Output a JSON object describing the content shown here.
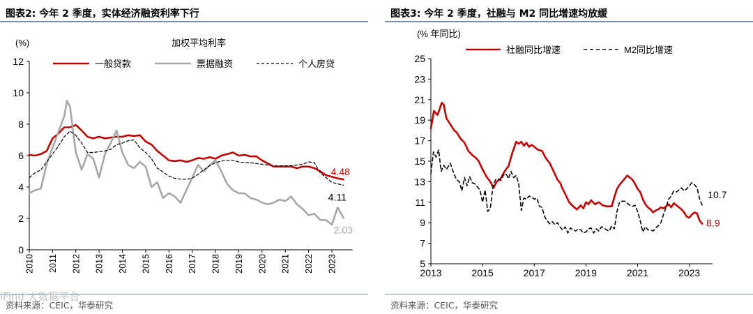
{
  "watermark": "iFind 大数据平台",
  "left_figure": {
    "title": "图表2:  今年 2 季度，实体经济融资利率下行",
    "source": "资料来源：CEIC，华泰研究"
  },
  "right_figure": {
    "title": "图表3:  今年 2 季度，社融与 M2 同比增速均放缓",
    "source": "资料来源：CEIC，华泰研究"
  },
  "colors": {
    "red": "#c00000",
    "gray": "#a6a6a6",
    "black": "#000000",
    "rule": "#6f90b8"
  },
  "chart_data": [
    {
      "id": "left",
      "type": "line",
      "unit_label": "(%)",
      "subtitle": "加权平均利率",
      "ylim": [
        0,
        12
      ],
      "yticks": [
        0,
        2,
        4,
        6,
        8,
        10,
        12
      ],
      "xlim": [
        2010,
        2023.9
      ],
      "xticks": [
        2010,
        2011,
        2012,
        2013,
        2014,
        2015,
        2016,
        2017,
        2018,
        2019,
        2020,
        2021,
        2022,
        2023
      ],
      "x_tick_rotation": -90,
      "legend_position": "top",
      "series": [
        {
          "name": "一般贷款",
          "style": "solid",
          "width": 2.6,
          "color": "#c00000",
          "x": [
            2010.0,
            2010.25,
            2010.5,
            2010.75,
            2011.0,
            2011.25,
            2011.5,
            2011.75,
            2012.0,
            2012.25,
            2012.5,
            2012.75,
            2013.0,
            2013.25,
            2013.5,
            2013.75,
            2014.0,
            2014.25,
            2014.5,
            2014.75,
            2015.0,
            2015.25,
            2015.5,
            2015.75,
            2016.0,
            2016.25,
            2016.5,
            2016.75,
            2017.0,
            2017.25,
            2017.5,
            2017.75,
            2018.0,
            2018.25,
            2018.5,
            2018.75,
            2019.0,
            2019.25,
            2019.5,
            2019.75,
            2020.0,
            2020.25,
            2020.5,
            2020.75,
            2021.0,
            2021.25,
            2021.5,
            2021.75,
            2022.0,
            2022.25,
            2022.5,
            2022.75,
            2023.0,
            2023.25,
            2023.5
          ],
          "y": [
            6.05,
            6.0,
            6.1,
            6.3,
            7.1,
            7.4,
            7.8,
            7.8,
            7.95,
            7.6,
            7.2,
            7.1,
            7.2,
            7.1,
            7.15,
            7.2,
            7.2,
            7.3,
            7.25,
            7.3,
            6.9,
            6.7,
            6.3,
            6.0,
            5.7,
            5.65,
            5.7,
            5.6,
            5.7,
            5.85,
            5.8,
            5.9,
            5.8,
            6.0,
            6.1,
            6.2,
            6.0,
            6.05,
            5.95,
            5.95,
            5.7,
            5.5,
            5.3,
            5.3,
            5.3,
            5.3,
            5.2,
            5.3,
            5.3,
            5.2,
            5.0,
            4.75,
            4.65,
            4.55,
            4.48
          ]
        },
        {
          "name": "票据融资",
          "style": "solid",
          "width": 2.6,
          "color": "#a6a6a6",
          "x": [
            2010.0,
            2010.25,
            2010.5,
            2010.75,
            2011.0,
            2011.25,
            2011.5,
            2011.62,
            2011.75,
            2012.0,
            2012.25,
            2012.5,
            2012.75,
            2013.0,
            2013.25,
            2013.5,
            2013.75,
            2014.0,
            2014.25,
            2014.5,
            2014.75,
            2015.0,
            2015.25,
            2015.5,
            2015.75,
            2016.0,
            2016.25,
            2016.5,
            2016.75,
            2017.0,
            2017.25,
            2017.5,
            2017.75,
            2018.0,
            2018.25,
            2018.5,
            2018.75,
            2019.0,
            2019.25,
            2019.5,
            2019.75,
            2020.0,
            2020.25,
            2020.5,
            2020.75,
            2021.0,
            2021.25,
            2021.5,
            2021.75,
            2022.0,
            2022.25,
            2022.5,
            2022.75,
            2023.0,
            2023.25,
            2023.5
          ],
          "y": [
            3.6,
            3.8,
            3.9,
            5.5,
            6.5,
            7.5,
            8.5,
            9.5,
            9.1,
            6.2,
            5.1,
            6.1,
            5.8,
            4.6,
            6.1,
            6.8,
            7.6,
            6.2,
            5.4,
            5.2,
            5.6,
            5.3,
            4.0,
            4.3,
            3.3,
            3.6,
            3.4,
            3.0,
            3.8,
            4.6,
            5.4,
            5.0,
            5.4,
            5.7,
            5.0,
            4.2,
            3.8,
            3.6,
            3.6,
            3.3,
            3.2,
            3.0,
            2.9,
            3.0,
            3.2,
            3.1,
            3.4,
            2.9,
            2.6,
            2.2,
            2.3,
            1.9,
            1.9,
            1.6,
            2.7,
            2.03
          ]
        },
        {
          "name": "个人房贷",
          "style": "dashed",
          "width": 1.2,
          "color": "#000000",
          "x": [
            2010.0,
            2010.25,
            2010.5,
            2010.75,
            2011.0,
            2011.25,
            2011.5,
            2011.75,
            2012.0,
            2012.25,
            2012.5,
            2012.75,
            2013.0,
            2013.25,
            2013.5,
            2013.75,
            2014.0,
            2014.25,
            2014.5,
            2014.75,
            2015.0,
            2015.25,
            2015.5,
            2015.75,
            2016.0,
            2016.25,
            2016.5,
            2016.75,
            2017.0,
            2017.25,
            2017.5,
            2017.75,
            2018.0,
            2018.25,
            2018.5,
            2018.75,
            2019.0,
            2019.25,
            2019.5,
            2019.75,
            2020.0,
            2020.25,
            2020.5,
            2020.75,
            2021.0,
            2021.25,
            2021.5,
            2021.75,
            2022.0,
            2022.25,
            2022.5,
            2022.75,
            2023.0,
            2023.25,
            2023.5
          ],
          "y": [
            4.6,
            4.9,
            5.1,
            5.6,
            6.1,
            6.6,
            7.2,
            7.55,
            7.3,
            6.8,
            6.2,
            6.2,
            6.25,
            6.3,
            6.4,
            6.7,
            6.8,
            6.95,
            7.0,
            6.5,
            6.2,
            5.8,
            5.2,
            4.95,
            4.7,
            4.55,
            4.5,
            4.5,
            4.55,
            4.8,
            5.1,
            5.35,
            5.55,
            5.65,
            5.7,
            5.7,
            5.6,
            5.55,
            5.55,
            5.5,
            5.45,
            5.4,
            5.35,
            5.35,
            5.35,
            5.35,
            5.4,
            5.45,
            5.6,
            5.55,
            4.9,
            4.6,
            4.3,
            4.2,
            4.11
          ]
        }
      ],
      "annotations": [
        {
          "text": "4.48",
          "series": "一般贷款",
          "color": "#c00000"
        },
        {
          "text": "4.11",
          "series": "个人房贷",
          "color": "#000000"
        },
        {
          "text": "2.03",
          "series": "票据融资",
          "color": "#a6a6a6"
        }
      ]
    },
    {
      "id": "right",
      "type": "line",
      "unit_label": "(% 年同比)",
      "ylim": [
        5,
        25
      ],
      "yticks": [
        5,
        7,
        9,
        11,
        13,
        15,
        17,
        19,
        21,
        23,
        25
      ],
      "xlim": [
        2013,
        2023.9
      ],
      "xticks": [
        2013,
        2015,
        2017,
        2019,
        2021,
        2023
      ],
      "legend_position": "top",
      "series": [
        {
          "name": "社融同比增速",
          "style": "solid",
          "width": 2.6,
          "color": "#c00000",
          "x": [
            2013.0,
            2013.12,
            2013.25,
            2013.33,
            2013.42,
            2013.5,
            2013.6,
            2013.75,
            2013.9,
            2014.0,
            2014.15,
            2014.3,
            2014.45,
            2014.6,
            2014.75,
            2014.85,
            2015.0,
            2015.15,
            2015.3,
            2015.42,
            2015.55,
            2015.7,
            2015.85,
            2016.0,
            2016.15,
            2016.3,
            2016.4,
            2016.5,
            2016.6,
            2016.7,
            2016.8,
            2016.9,
            2017.0,
            2017.15,
            2017.3,
            2017.45,
            2017.6,
            2017.75,
            2017.9,
            2018.0,
            2018.1,
            2018.2,
            2018.35,
            2018.5,
            2018.65,
            2018.8,
            2018.9,
            2019.0,
            2019.1,
            2019.2,
            2019.35,
            2019.5,
            2019.65,
            2019.8,
            2019.9,
            2020.0,
            2020.1,
            2020.2,
            2020.3,
            2020.4,
            2020.5,
            2020.6,
            2020.7,
            2020.8,
            2020.9,
            2021.0,
            2021.1,
            2021.2,
            2021.3,
            2021.4,
            2021.5,
            2021.6,
            2021.7,
            2021.8,
            2021.9,
            2022.0,
            2022.1,
            2022.2,
            2022.3,
            2022.4,
            2022.5,
            2022.6,
            2022.7,
            2022.8,
            2022.9,
            2023.0,
            2023.1,
            2023.2,
            2023.3,
            2023.4,
            2023.5
          ],
          "y": [
            18.2,
            19.9,
            19.5,
            20.0,
            20.7,
            20.5,
            19.2,
            18.6,
            18.0,
            17.8,
            17.2,
            16.8,
            16.0,
            15.6,
            15.3,
            15.0,
            14.2,
            13.5,
            13.0,
            12.4,
            13.0,
            13.3,
            14.0,
            14.5,
            15.8,
            16.9,
            16.7,
            16.9,
            16.5,
            16.8,
            16.4,
            16.6,
            16.4,
            16.1,
            16.0,
            15.3,
            14.8,
            14.0,
            13.2,
            12.9,
            12.3,
            11.8,
            11.0,
            10.6,
            10.3,
            10.7,
            10.4,
            11.0,
            10.8,
            11.2,
            10.8,
            11.0,
            10.7,
            10.6,
            10.6,
            10.6,
            11.5,
            12.3,
            12.7,
            13.0,
            13.3,
            13.6,
            13.4,
            13.2,
            12.8,
            12.3,
            12.0,
            11.3,
            10.8,
            10.5,
            10.3,
            10.0,
            10.2,
            10.3,
            10.5,
            10.4,
            10.6,
            10.8,
            10.5,
            10.9,
            10.7,
            10.5,
            10.3,
            10.0,
            9.6,
            9.5,
            9.8,
            10.0,
            9.9,
            9.2,
            8.9
          ]
        },
        {
          "name": "M2同比增速",
          "style": "dashed",
          "width": 1.6,
          "color": "#000000",
          "x": [
            2013.0,
            2013.1,
            2013.2,
            2013.3,
            2013.4,
            2013.5,
            2013.6,
            2013.75,
            2013.9,
            2014.0,
            2014.1,
            2014.2,
            2014.3,
            2014.4,
            2014.5,
            2014.6,
            2014.7,
            2014.8,
            2014.9,
            2015.0,
            2015.1,
            2015.2,
            2015.3,
            2015.4,
            2015.5,
            2015.6,
            2015.7,
            2015.8,
            2015.9,
            2016.0,
            2016.1,
            2016.2,
            2016.3,
            2016.4,
            2016.5,
            2016.6,
            2016.7,
            2016.8,
            2016.9,
            2017.0,
            2017.1,
            2017.2,
            2017.3,
            2017.4,
            2017.5,
            2017.6,
            2017.7,
            2017.8,
            2017.9,
            2018.0,
            2018.1,
            2018.2,
            2018.3,
            2018.4,
            2018.5,
            2018.6,
            2018.7,
            2018.8,
            2018.9,
            2019.0,
            2019.1,
            2019.2,
            2019.3,
            2019.4,
            2019.5,
            2019.6,
            2019.7,
            2019.8,
            2019.9,
            2020.0,
            2020.1,
            2020.2,
            2020.3,
            2020.4,
            2020.5,
            2020.6,
            2020.7,
            2020.8,
            2020.9,
            2021.0,
            2021.1,
            2021.2,
            2021.3,
            2021.4,
            2021.5,
            2021.6,
            2021.7,
            2021.8,
            2021.9,
            2022.0,
            2022.1,
            2022.2,
            2022.3,
            2022.4,
            2022.5,
            2022.6,
            2022.7,
            2022.8,
            2022.9,
            2023.0,
            2023.1,
            2023.2,
            2023.3,
            2023.4,
            2023.5
          ],
          "y": [
            13.8,
            15.9,
            15.4,
            16.1,
            14.0,
            14.6,
            14.2,
            14.8,
            13.7,
            13.2,
            13.0,
            12.1,
            13.4,
            12.6,
            13.5,
            12.9,
            12.8,
            12.5,
            12.2,
            11.0,
            12.2,
            10.1,
            10.4,
            12.5,
            13.2,
            13.3,
            13.1,
            13.6,
            13.8,
            13.3,
            14.0,
            13.4,
            13.6,
            12.8,
            10.2,
            11.4,
            11.3,
            11.6,
            11.5,
            11.3,
            11.4,
            10.6,
            10.5,
            9.6,
            9.2,
            8.9,
            9.1,
            8.8,
            9.0,
            8.6,
            8.3,
            8.6,
            8.0,
            8.5,
            8.3,
            8.2,
            8.4,
            8.3,
            8.0,
            8.1,
            8.4,
            8.5,
            8.0,
            8.4,
            8.2,
            8.6,
            8.5,
            8.3,
            8.2,
            8.7,
            8.4,
            10.1,
            11.0,
            11.1,
            11.1,
            10.9,
            10.7,
            10.6,
            10.7,
            10.1,
            9.2,
            8.1,
            8.6,
            8.3,
            8.3,
            8.2,
            8.5,
            8.7,
            9.0,
            9.8,
            10.5,
            11.3,
            11.6,
            12.1,
            12.0,
            12.2,
            12.4,
            12.1,
            12.3,
            12.6,
            12.9,
            12.7,
            12.4,
            11.3,
            10.7
          ]
        }
      ],
      "annotations": [
        {
          "text": "10.7",
          "series": "M2同比增速",
          "color": "#000000"
        },
        {
          "text": "8.9",
          "series": "社融同比增速",
          "color": "#c00000"
        }
      ]
    }
  ]
}
